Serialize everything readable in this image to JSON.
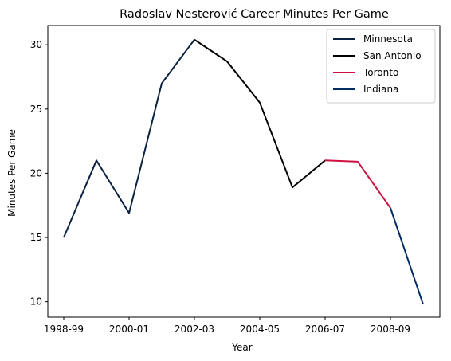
{
  "chart_data": {
    "type": "line",
    "title": "Radoslav Nesterović Career Minutes Per Game",
    "xlabel": "Year",
    "ylabel": "Minutes Per Game",
    "x_tick_labels": [
      "1998-99",
      "2000-01",
      "2002-03",
      "2004-05",
      "2006-07",
      "2008-09"
    ],
    "y_ticks": [
      10,
      15,
      20,
      25,
      30
    ],
    "ylim": [
      8.8,
      31.5
    ],
    "legend_position": "top-right",
    "series": [
      {
        "name": "Minnesota",
        "color": "#0C2340",
        "points": [
          [
            "1998-99",
            15.0
          ],
          [
            "1999-00",
            21.0
          ],
          [
            "2000-01",
            16.9
          ],
          [
            "2001-02",
            27.0
          ],
          [
            "2002-03",
            30.4
          ]
        ]
      },
      {
        "name": "San Antonio",
        "color": "#000000",
        "points": [
          [
            "2002-03",
            30.4
          ],
          [
            "2003-04",
            28.7
          ],
          [
            "2004-05",
            25.5
          ],
          [
            "2005-06",
            18.9
          ],
          [
            "2006-07",
            21.0
          ]
        ]
      },
      {
        "name": "Toronto",
        "color": "#CE1141",
        "points": [
          [
            "2006-07",
            21.0
          ],
          [
            "2007-08",
            20.9
          ],
          [
            "2008-09",
            17.3
          ]
        ]
      },
      {
        "name": "Indiana",
        "color": "#002D62",
        "points": [
          [
            "2008-09",
            17.3
          ],
          [
            "2009-10",
            9.8
          ]
        ]
      }
    ]
  }
}
